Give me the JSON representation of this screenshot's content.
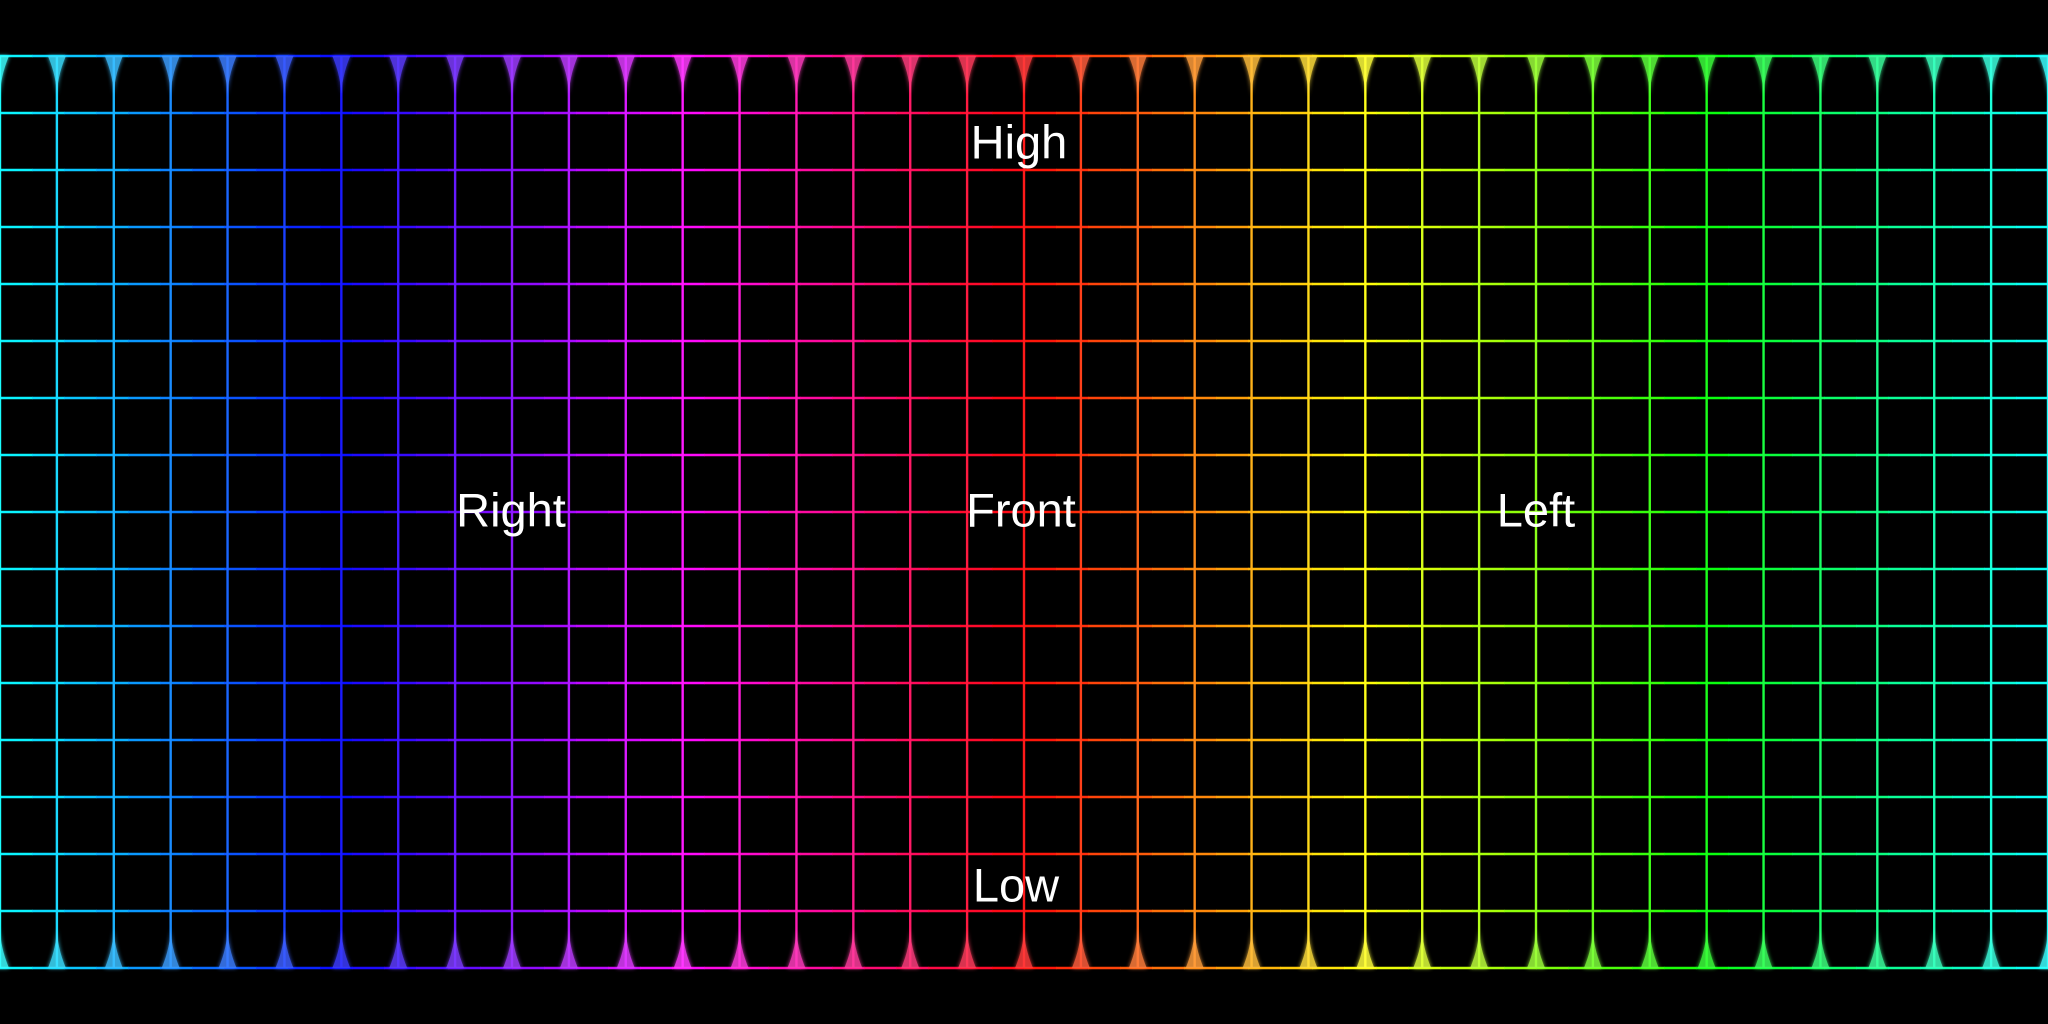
{
  "labels": {
    "high": "High",
    "right": "Right",
    "front": "Front",
    "left": "Left",
    "low": "Low"
  },
  "colors": {
    "background": "#000000",
    "label_text": "#ffffff"
  },
  "grid": {
    "style": "equirectangular hue grid",
    "vertical_lines": 36,
    "horizontal_lines": 17,
    "hue_sequence": "cyan-blue-violet-magenta-red-orange-yellow-green-cyan"
  }
}
